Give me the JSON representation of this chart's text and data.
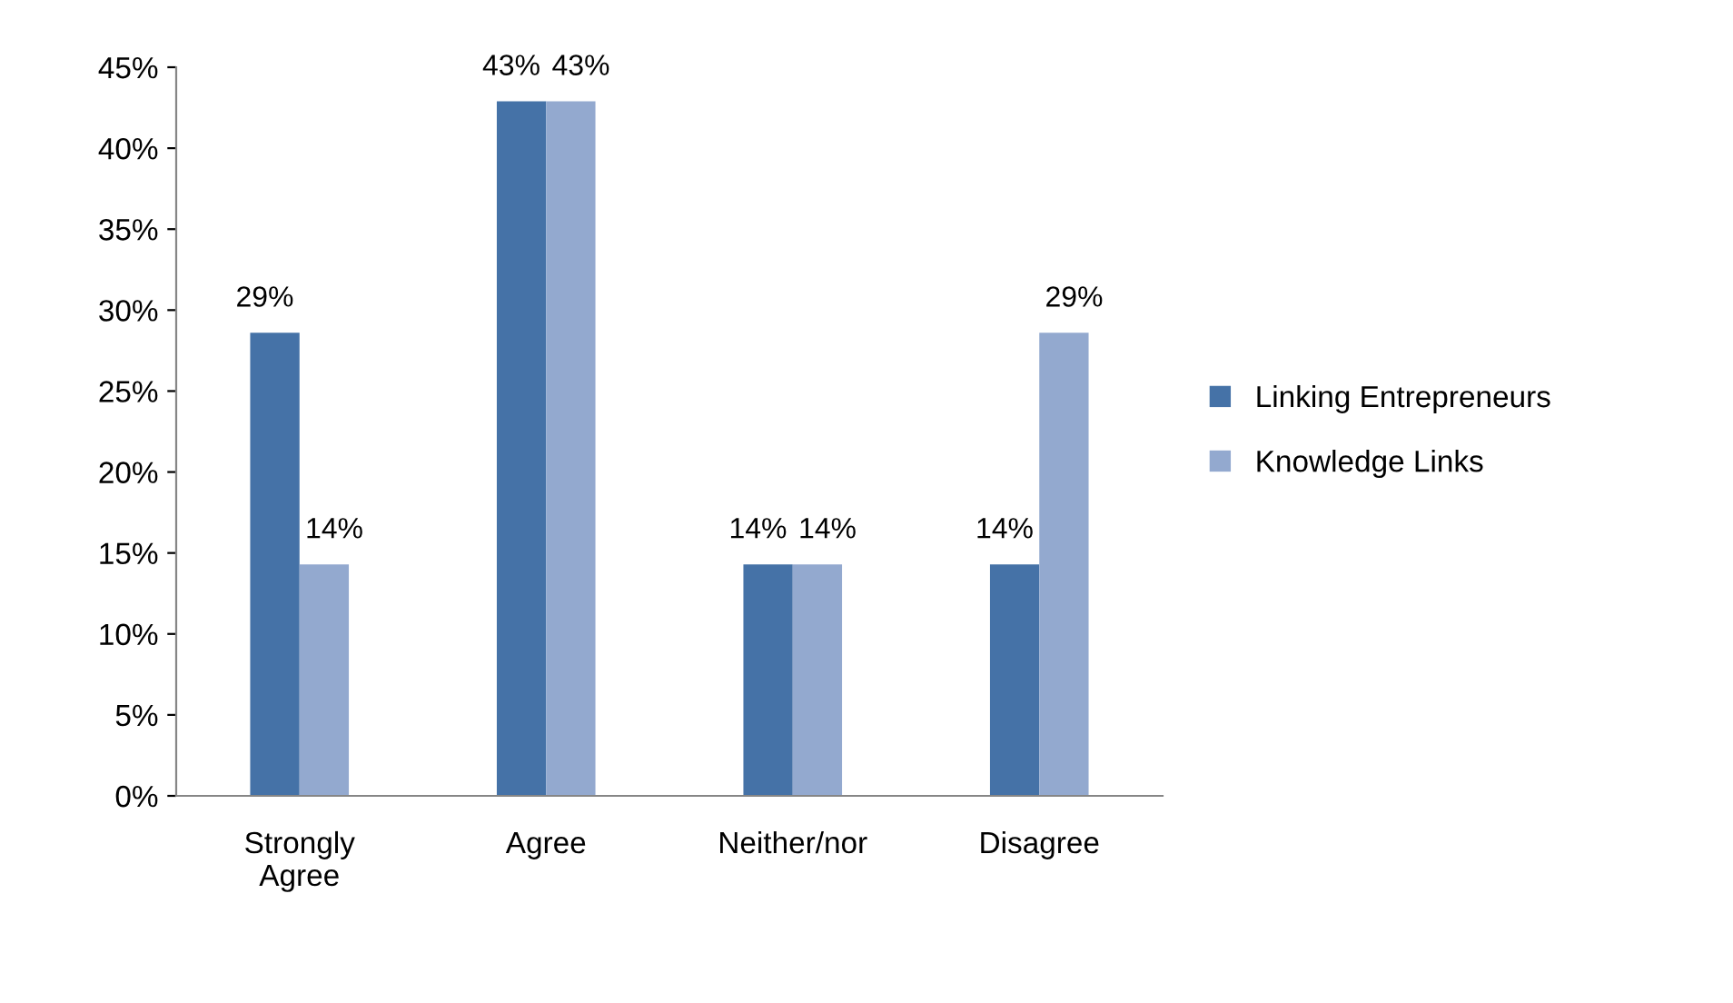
{
  "chart_data": {
    "type": "bar",
    "categories": [
      "Strongly Agree",
      "Agree",
      "Neither/nor",
      "Disagree"
    ],
    "series": [
      {
        "name": "Linking Entrepreneurs",
        "color": "#4572a7",
        "values": [
          28.6,
          42.9,
          14.3,
          14.3
        ],
        "value_labels": [
          "29%",
          "43%",
          "14%",
          "14%"
        ]
      },
      {
        "name": "Knowledge Links",
        "color": "#93a9cf",
        "values": [
          14.3,
          42.9,
          14.3,
          28.6
        ],
        "value_labels": [
          "14%",
          "43%",
          "14%",
          "29%"
        ]
      }
    ],
    "ylim": [
      0,
      45
    ],
    "yticks": [
      {
        "value": 0,
        "label": "0%"
      },
      {
        "value": 5,
        "label": "5%"
      },
      {
        "value": 10,
        "label": "10%"
      },
      {
        "value": 15,
        "label": "15%"
      },
      {
        "value": 20,
        "label": "20%"
      },
      {
        "value": 25,
        "label": "25%"
      },
      {
        "value": 30,
        "label": "30%"
      },
      {
        "value": 35,
        "label": "35%"
      },
      {
        "value": 40,
        "label": "40%"
      },
      {
        "value": 45,
        "label": "45%"
      }
    ],
    "grid": false,
    "legend": "right"
  }
}
